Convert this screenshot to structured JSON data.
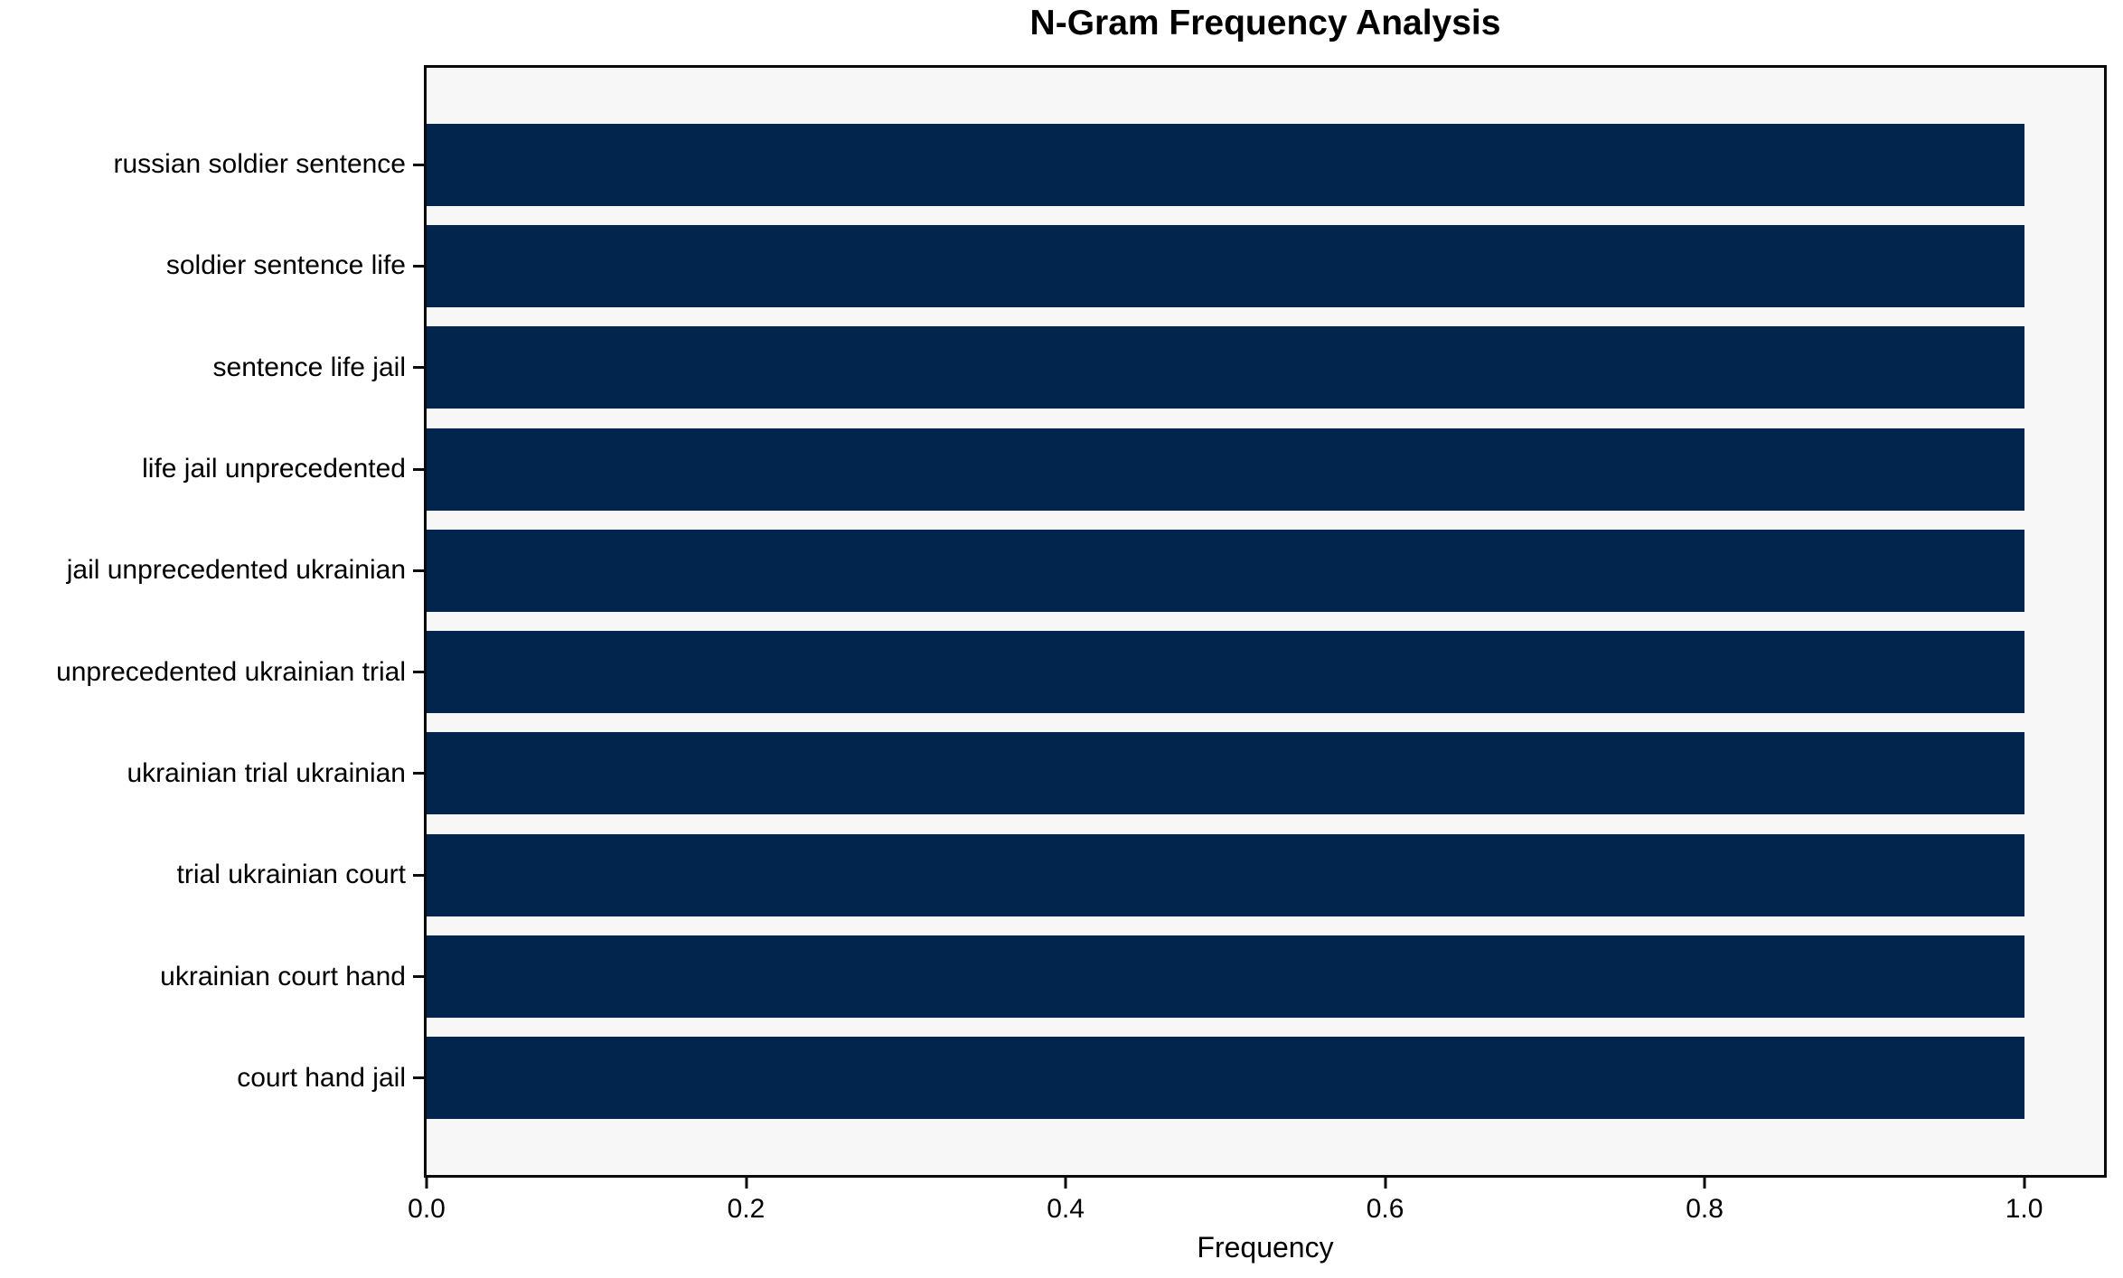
{
  "chart_data": {
    "type": "bar",
    "orientation": "horizontal",
    "title": "N-Gram Frequency Analysis",
    "xlabel": "Frequency",
    "ylabel": "",
    "categories": [
      "russian soldier sentence",
      "soldier sentence life",
      "sentence life jail",
      "life jail unprecedented",
      "jail unprecedented ukrainian",
      "unprecedented ukrainian trial",
      "ukrainian trial ukrainian",
      "trial ukrainian court",
      "ukrainian court hand",
      "court hand jail"
    ],
    "values": [
      1.0,
      1.0,
      1.0,
      1.0,
      1.0,
      1.0,
      1.0,
      1.0,
      1.0,
      1.0
    ],
    "xlim": [
      0,
      1.05
    ],
    "x_ticks": [
      {
        "value": 0.0,
        "label": "0.0"
      },
      {
        "value": 0.2,
        "label": "0.2"
      },
      {
        "value": 0.4,
        "label": "0.4"
      },
      {
        "value": 0.6,
        "label": "0.6"
      },
      {
        "value": 0.8,
        "label": "0.8"
      },
      {
        "value": 1.0,
        "label": "1.0"
      }
    ],
    "grid": false,
    "legend": "none",
    "bar_color": "#02254e",
    "plot_background": "#f7f7f8",
    "figure_background": "#ffffff",
    "spine_color": "#0a0a0a",
    "text_color": "#000000"
  }
}
